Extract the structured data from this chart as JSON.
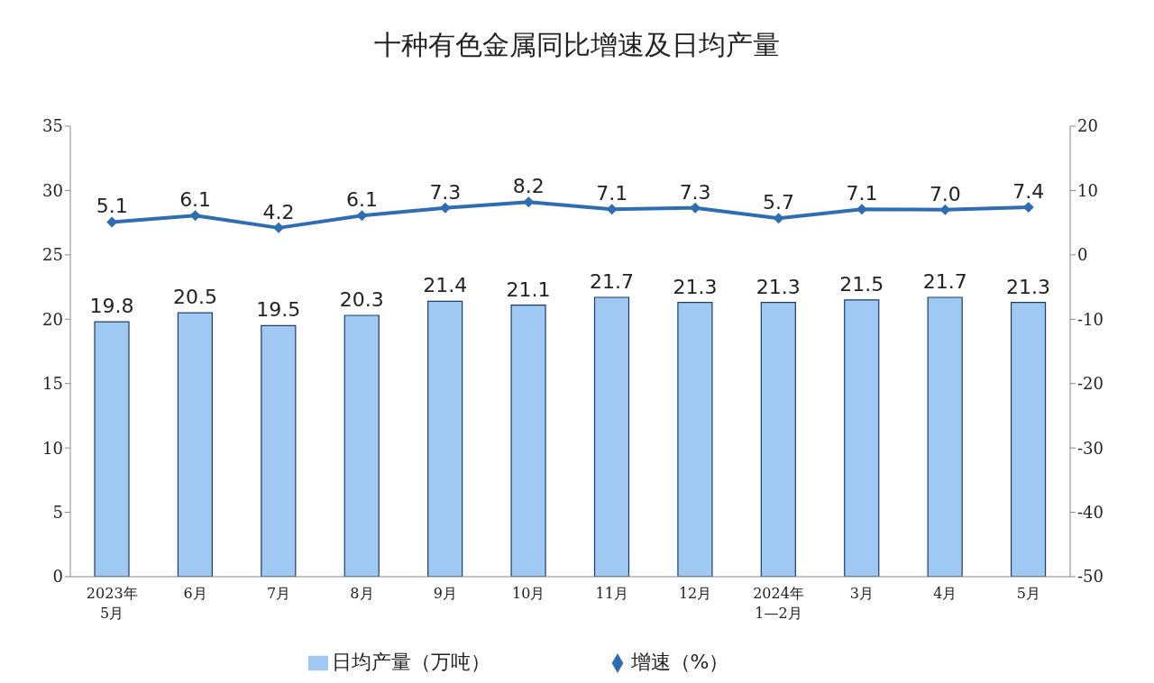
{
  "chart_data": {
    "type": "bar",
    "title": "十种有色金属同比增速及日均产量",
    "categories": [
      "2023年\n5月",
      "6月",
      "7月",
      "8月",
      "9月",
      "10月",
      "11月",
      "12月",
      "2024年\n1—2月",
      "3月",
      "4月",
      "5月"
    ],
    "series": [
      {
        "name": "日均产量（万吨）",
        "color": "#9fc8f2",
        "values": [
          19.8,
          20.5,
          19.5,
          20.3,
          21.4,
          21.1,
          21.7,
          21.3,
          21.3,
          21.5,
          21.7,
          21.3
        ],
        "value_labels": [
          "19.8",
          "20.5",
          "19.5",
          "20.3",
          "21.4",
          "21.1",
          "21.7",
          "21.3",
          "21.3",
          "21.5",
          "21.7",
          "21.3"
        ]
      },
      {
        "name": "增速（%）",
        "type": "line",
        "axis": "y2",
        "color": "#2f6db3",
        "marker": "diamond",
        "values": [
          5.1,
          6.1,
          4.2,
          6.1,
          7.3,
          8.2,
          7.1,
          7.3,
          5.7,
          7.1,
          7.0,
          7.4
        ],
        "value_labels": [
          "5.1",
          "6.1",
          "4.2",
          "6.1",
          "7.3",
          "8.2",
          "7.1",
          "7.3",
          "5.7",
          "7.1",
          "7.0",
          "7.4"
        ]
      }
    ],
    "ylim": [
      0,
      35
    ],
    "yticks": [
      0,
      5,
      10,
      15,
      20,
      25,
      30,
      35
    ],
    "y2lim": [
      -50,
      20
    ],
    "y2ticks": [
      -50,
      -40,
      -30,
      -20,
      -10,
      0,
      10,
      20
    ],
    "grid": false,
    "legend": "bottom"
  }
}
